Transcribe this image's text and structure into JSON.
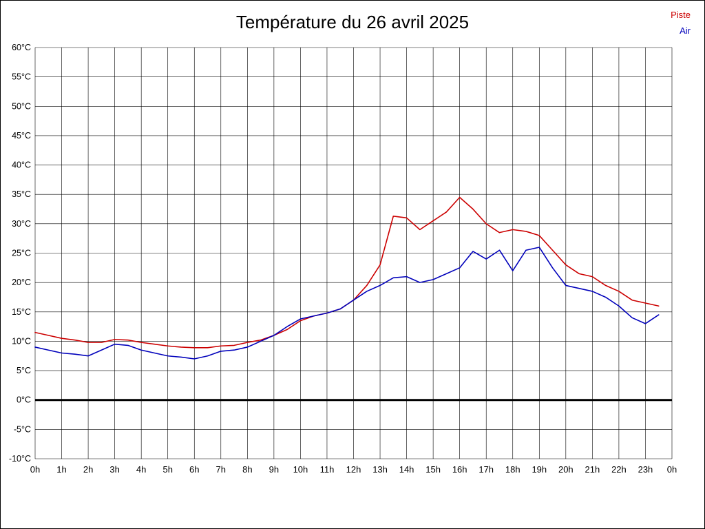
{
  "title": "Température du 26 avril 2025",
  "legend": [
    {
      "label": "Piste",
      "color": "#cc0000"
    },
    {
      "label": "Air",
      "color": "#0000bb"
    }
  ],
  "chart_data": {
    "type": "line",
    "title": "Température du 26 avril 2025",
    "xlabel": "",
    "ylabel": "",
    "xlim": [
      0,
      24
    ],
    "ylim": [
      -10,
      60
    ],
    "ytick_step": 5,
    "ytick_suffix": "°C",
    "grid": true,
    "zero_line": true,
    "legend_position": "top-right",
    "xtick_labels": [
      "0h",
      "1h",
      "2h",
      "3h",
      "4h",
      "5h",
      "6h",
      "7h",
      "8h",
      "9h",
      "10h",
      "11h",
      "12h",
      "13h",
      "14h",
      "15h",
      "16h",
      "17h",
      "18h",
      "19h",
      "20h",
      "21h",
      "22h",
      "23h",
      "0h"
    ],
    "x": [
      0,
      0.5,
      1,
      1.5,
      2,
      2.5,
      3,
      3.5,
      4,
      4.5,
      5,
      5.5,
      6,
      6.5,
      7,
      7.5,
      8,
      8.5,
      9,
      9.5,
      10,
      10.5,
      11,
      11.5,
      12,
      12.5,
      13,
      13.5,
      14,
      14.5,
      15,
      15.5,
      16,
      16.5,
      17,
      17.5,
      18,
      18.5,
      19,
      19.5,
      20,
      20.5,
      21,
      21.5,
      22,
      22.5,
      23,
      23.5
    ],
    "series": [
      {
        "name": "Piste",
        "color": "#cc0000",
        "values": [
          11.5,
          11,
          10.5,
          10.2,
          9.8,
          9.8,
          10.3,
          10.2,
          9.8,
          9.5,
          9.2,
          9,
          8.9,
          8.9,
          9.2,
          9.3,
          9.8,
          10.2,
          11,
          12,
          13.5,
          14.3,
          14.8,
          15.5,
          17,
          19.5,
          23,
          31.3,
          31,
          29,
          30.5,
          32,
          34.5,
          32.5,
          30,
          28.5,
          29,
          28.7,
          28,
          25.5,
          23,
          21.5,
          21,
          19.5,
          18.5,
          17,
          16.5,
          16
        ]
      },
      {
        "name": "Air",
        "color": "#0000bb",
        "values": [
          9,
          8.5,
          8,
          7.8,
          7.5,
          8.5,
          9.5,
          9.3,
          8.5,
          8,
          7.5,
          7.3,
          7,
          7.5,
          8.3,
          8.5,
          9,
          10,
          11,
          12.5,
          13.8,
          14.3,
          14.8,
          15.5,
          17,
          18.5,
          19.5,
          20.8,
          21,
          20,
          20.5,
          21.5,
          22.5,
          25.3,
          24,
          25.5,
          22,
          25.5,
          26,
          22.5,
          19.5,
          19,
          18.5,
          17.5,
          16,
          14,
          13,
          14.5
        ]
      }
    ]
  }
}
